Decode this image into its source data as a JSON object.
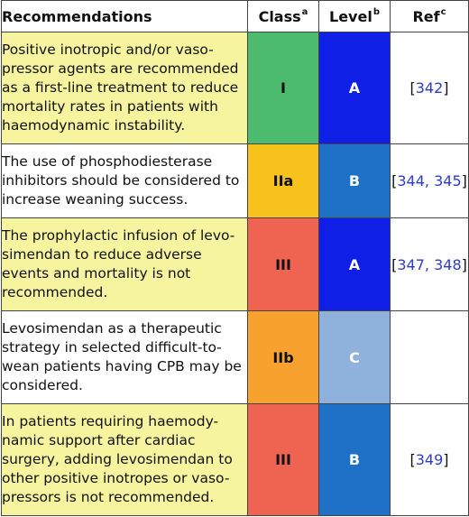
{
  "colors": {
    "row_yellow": "#f7f4a0",
    "row_white": "#ffffff",
    "class_I": "#4dbb6d",
    "class_IIa": "#f7c21b",
    "class_IIb": "#f7a12e",
    "class_III": "#ee6451",
    "level_A": "#0f1fe6",
    "level_B": "#1e71c7",
    "level_C": "#8fb2dc",
    "ref_link": "#2b3cc9"
  },
  "header": {
    "recommendations": "Recommendations",
    "class": "Class",
    "class_sup": "a",
    "level": "Level",
    "level_sup": "b",
    "ref": "Ref",
    "ref_sup": "c"
  },
  "rows": [
    {
      "text": "Positive inotropic and/or vaso-pressor agents are recommended as a first-line treatment to reduce mortality rates in patients with haemodynamic instability.",
      "class": "I",
      "level": "A",
      "ref": "342"
    },
    {
      "text": "The use of phosphodiesterase inhibitors should be considered to increase weaning success.",
      "class": "IIa",
      "level": "B",
      "ref": "344, 345"
    },
    {
      "text": "The prophylactic infusion of levo-simendan to reduce adverse events and mortality is not recommended.",
      "class": "III",
      "level": "A",
      "ref": "347, 348"
    },
    {
      "text": "Levosimendan as a therapeutic strategy in selected difficult-to-wean patients having CPB may be considered.",
      "class": "IIb",
      "level": "C",
      "ref": ""
    },
    {
      "text": "In patients requiring haemody-namic support after cardiac surgery, adding levosimendan to other positive inotropes or vaso-pressors is not recommended.",
      "class": "III",
      "level": "B",
      "ref": "349"
    }
  ]
}
